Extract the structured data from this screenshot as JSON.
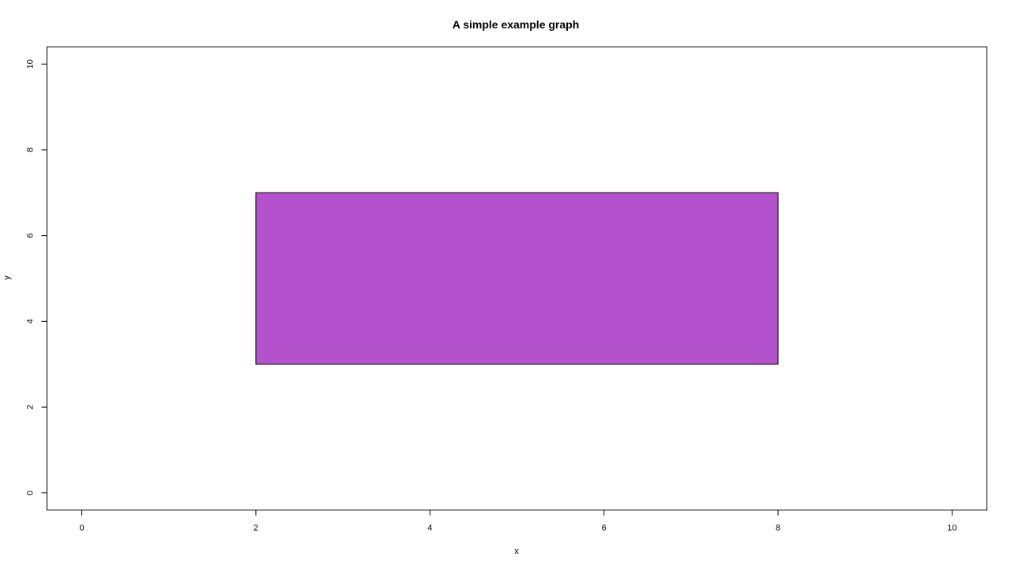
{
  "chart_data": {
    "type": "rect",
    "title": "A simple example graph",
    "xlabel": "x",
    "ylabel": "y",
    "xlim": [
      -0.4,
      10.4
    ],
    "ylim": [
      -0.4,
      10.4
    ],
    "xticks": [
      0,
      2,
      4,
      6,
      8,
      10
    ],
    "yticks": [
      0,
      2,
      4,
      6,
      8,
      10
    ],
    "grid": false,
    "shapes": [
      {
        "kind": "rectangle",
        "x0": 2,
        "y0": 3,
        "x1": 8,
        "y1": 7,
        "fill": "#b452cd",
        "border": "#000000"
      }
    ]
  }
}
